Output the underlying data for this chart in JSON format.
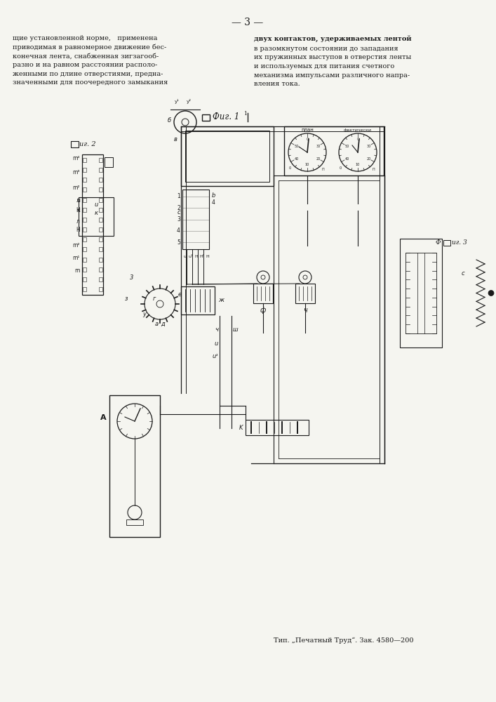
{
  "page_number": "3",
  "background_color": "#f5f5f0",
  "text_color": "#1a1a1a",
  "printer_text": "Тип. „Печатный Труд“. Зак. 4580—200",
  "left_col_text": "щие установленной норме,   применена\nприводимая в равномерное движение бес-\nконечная лента, снабженная зигзагооб-\nразно и на равном расстоянии располо-\nженными по длине отверстиями, предна-\nзначенными для поочередного замыкания",
  "right_col_text_normal": "в разомкнутом состоянии до западания\nих пружинных выступов в отверстия ленты\nи используемых для питания счетного\nмеханизма импульсами различного напра-\nвления тока.",
  "right_col_bold": "двух контактов, удерживаемых лентой"
}
